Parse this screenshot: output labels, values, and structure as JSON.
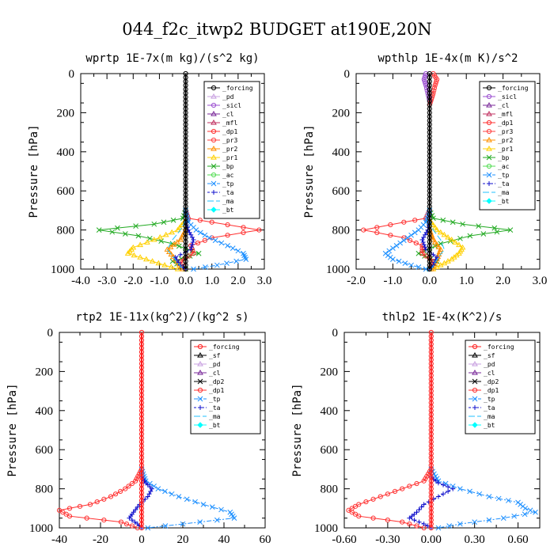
{
  "figure": {
    "title": "044_f2c_itwp2  BUDGET at190E,20N"
  },
  "colors": {
    "_forcing": "#000000",
    "_pd": "#c8a0e0",
    "_sicl": "#9b4fd0",
    "_cl": "#7a2a9a",
    "_mfl": "#c03060",
    "_dp1": "#ff3030",
    "_pr3": "#ff4040",
    "_pr2": "#ff9000",
    "_pr1": "#ffd000",
    "_bp": "#22aa22",
    "_ac": "#55dd55",
    "_tp": "#1e90ff",
    "_ta": "#1010cc",
    "_ma": "#20c0ff",
    "_bt": "#00ffff"
  },
  "chart_data": [
    {
      "type": "line",
      "title": "wprtp  1E-7x(m kg)/(s^2 kg)",
      "ylabel": "Pressure [hPa]",
      "xlim": [
        -4,
        3
      ],
      "ylim": [
        1000,
        0
      ],
      "xticks": [
        -4,
        -3,
        -2,
        -1,
        0,
        1,
        2,
        3
      ],
      "xticklabels": [
        "-4.0",
        "-3.0",
        "-2.0",
        "-1.0",
        "0.0",
        "1.0",
        "2.0",
        "3.0"
      ],
      "yticks": [
        0,
        200,
        400,
        600,
        800,
        1000
      ],
      "legend": {
        "position": "top-right",
        "entries": [
          "_forcing",
          "_pd",
          "_sicl",
          "_cl",
          "_mfl",
          "_dp1",
          "_pr3",
          "_pr2",
          "_pr1",
          "_bp",
          "_ac",
          "_tp",
          "_ta",
          "_ma",
          "_bt"
        ]
      },
      "series": [
        {
          "name": "_bp",
          "p": [
            700,
            740,
            770,
            800,
            830,
            870,
            920,
            960,
            1000
          ],
          "x": [
            0,
            -0.1,
            -1.2,
            -3.3,
            -1.8,
            -0.5,
            0.5,
            -0.5,
            0
          ]
        },
        {
          "name": "_dp1",
          "p": [
            700,
            740,
            760,
            800,
            840,
            880,
            920,
            960,
            1000
          ],
          "x": [
            0,
            0.1,
            1.0,
            2.8,
            1.0,
            0.2,
            0.3,
            -0.2,
            0
          ]
        },
        {
          "name": "_pr1",
          "p": [
            750,
            800,
            850,
            890,
            920,
            950,
            980,
            1000
          ],
          "x": [
            0,
            -0.3,
            -1.2,
            -2.0,
            -2.2,
            -1.5,
            -0.8,
            -0.3
          ]
        },
        {
          "name": "_pr2",
          "p": [
            800,
            850,
            900,
            950,
            1000
          ],
          "x": [
            0,
            -0.2,
            -0.7,
            -0.4,
            -0.1
          ]
        },
        {
          "name": "_tp",
          "p": [
            700,
            760,
            800,
            840,
            880,
            920,
            950,
            980,
            1000
          ],
          "x": [
            0,
            0.1,
            0.4,
            0.9,
            1.6,
            2.2,
            2.3,
            1.2,
            0.3
          ]
        },
        {
          "name": "_ta",
          "p": [
            760,
            800,
            850,
            900,
            940,
            980,
            1000
          ],
          "x": [
            0,
            0.1,
            0.3,
            0.2,
            -0.4,
            -0.2,
            0
          ]
        },
        {
          "name": "_ma",
          "p": [
            750,
            800,
            850,
            900,
            950,
            1000
          ],
          "x": [
            0,
            -0.2,
            -0.5,
            -0.7,
            -0.4,
            -0.1
          ]
        },
        {
          "name": "_forcing",
          "p": [
            0,
            100,
            200,
            300,
            400,
            500,
            600,
            700,
            800,
            900,
            1000
          ],
          "x": [
            0,
            0,
            0,
            0,
            0,
            0,
            0,
            0,
            0,
            0,
            0
          ]
        }
      ]
    },
    {
      "type": "line",
      "title": "wpthlp  1E-4x(m K)/s^2",
      "ylabel": "Pressure [hPa]",
      "xlim": [
        -2,
        3
      ],
      "ylim": [
        1000,
        0
      ],
      "xticks": [
        -2,
        -1,
        0,
        1,
        2,
        3
      ],
      "xticklabels": [
        "-2.0",
        "-1.0",
        "0.0",
        "1.0",
        "2.0",
        "3.0"
      ],
      "yticks": [
        0,
        200,
        400,
        600,
        800,
        1000
      ],
      "legend": {
        "position": "top-right",
        "entries": [
          "_forcing",
          "_sicl",
          "_cl",
          "_mfl",
          "_dp1",
          "_pr3",
          "_pr2",
          "_pr1",
          "_bp",
          "_ac",
          "_tp",
          "_ta",
          "_ma",
          "_bt"
        ]
      },
      "series": [
        {
          "name": "_bp",
          "p": [
            700,
            740,
            770,
            800,
            830,
            870,
            920,
            960,
            1000
          ],
          "x": [
            0,
            0.1,
            0.9,
            2.2,
            1.1,
            0.3,
            -0.3,
            0.2,
            0
          ]
        },
        {
          "name": "_dp1",
          "p": [
            700,
            740,
            760,
            800,
            840,
            880,
            920,
            960,
            1000
          ],
          "x": [
            0,
            -0.1,
            -0.7,
            -1.8,
            -0.7,
            -0.2,
            -0.2,
            0.1,
            0
          ]
        },
        {
          "name": "_pr1",
          "p": [
            750,
            800,
            850,
            890,
            920,
            950,
            980,
            1000
          ],
          "x": [
            0,
            0.2,
            0.6,
            0.9,
            0.8,
            0.6,
            0.3,
            0.1
          ]
        },
        {
          "name": "_pr2",
          "p": [
            800,
            850,
            900,
            950,
            1000
          ],
          "x": [
            0,
            0.1,
            0.3,
            0.2,
            0.05
          ]
        },
        {
          "name": "_tp",
          "p": [
            700,
            760,
            800,
            840,
            880,
            920,
            950,
            980,
            1000
          ],
          "x": [
            0,
            -0.1,
            -0.3,
            -0.6,
            -0.9,
            -1.2,
            -1.0,
            -0.5,
            -0.1
          ]
        },
        {
          "name": "_ta",
          "p": [
            760,
            800,
            850,
            900,
            940,
            980,
            1000
          ],
          "x": [
            0,
            -0.05,
            -0.2,
            -0.1,
            0.2,
            0.1,
            0
          ]
        },
        {
          "name": "_ma",
          "p": [
            750,
            800,
            850,
            900,
            950,
            1000
          ],
          "x": [
            0,
            0.1,
            0.3,
            0.4,
            0.2,
            0.05
          ]
        },
        {
          "name": "_pr3",
          "p": [
            0,
            30,
            60,
            100,
            130,
            160
          ],
          "x": [
            0.1,
            0.2,
            0.15,
            0.1,
            0.05,
            0
          ]
        },
        {
          "name": "_sicl",
          "p": [
            0,
            30,
            60,
            100,
            140
          ],
          "x": [
            -0.1,
            -0.15,
            -0.1,
            -0.05,
            0
          ]
        },
        {
          "name": "_forcing",
          "p": [
            0,
            100,
            200,
            300,
            400,
            500,
            600,
            700,
            800,
            900,
            1000
          ],
          "x": [
            0,
            0,
            0,
            0,
            0,
            0,
            0,
            0,
            0,
            0,
            0
          ]
        }
      ]
    },
    {
      "type": "line",
      "title": "rtp2  1E-11x(kg^2)/(kg^2 s)",
      "ylabel": "Pressure [hPa]",
      "xlim": [
        -40,
        60
      ],
      "ylim": [
        1000,
        0
      ],
      "xticks": [
        -40,
        -20,
        0,
        20,
        40,
        60
      ],
      "xticklabels": [
        "-40",
        "-20",
        "0",
        "20",
        "40",
        "60"
      ],
      "yticks": [
        0,
        200,
        400,
        600,
        800,
        1000
      ],
      "legend": {
        "position": "top-right",
        "entries": [
          "_forcing",
          "_sf",
          "_pd",
          "_cl",
          "_dp2",
          "_dp1",
          "_tp",
          "_ta",
          "_ma",
          "_bt"
        ]
      },
      "series": [
        {
          "name": "_dp1",
          "p": [
            700,
            760,
            800,
            840,
            880,
            910,
            940,
            970,
            1000
          ],
          "x": [
            0,
            -3,
            -8,
            -15,
            -25,
            -40,
            -35,
            -10,
            -2
          ]
        },
        {
          "name": "_tp",
          "p": [
            700,
            760,
            800,
            840,
            880,
            920,
            950,
            980,
            1000
          ],
          "x": [
            0,
            2,
            8,
            18,
            30,
            43,
            45,
            20,
            3
          ]
        },
        {
          "name": "_ta",
          "p": [
            740,
            770,
            800,
            840,
            880,
            920,
            950,
            980,
            1000
          ],
          "x": [
            0,
            2,
            5,
            3,
            -1,
            -4,
            -6,
            -2,
            0
          ]
        },
        {
          "name": "_forcing",
          "p": [
            0,
            100,
            200,
            300,
            400,
            500,
            600,
            700,
            800,
            900,
            1000
          ],
          "x": [
            0,
            0,
            0,
            0,
            0,
            0,
            0,
            0,
            0,
            0,
            0
          ]
        }
      ]
    },
    {
      "type": "line",
      "title": "thlp2  1E-4x(K^2)/s",
      "ylabel": "Pressure [hPa]",
      "xlim": [
        -0.6,
        0.75
      ],
      "ylim": [
        1000,
        0
      ],
      "xticks": [
        -0.6,
        -0.3,
        0,
        0.3,
        0.6
      ],
      "xticklabels": [
        "-0.60",
        "-0.30",
        "0.00",
        "0.30",
        "0.60"
      ],
      "yticks": [
        0,
        200,
        400,
        600,
        800,
        1000
      ],
      "legend": {
        "position": "top-right",
        "entries": [
          "_forcing",
          "_sf",
          "_pd",
          "_cl",
          "_dp2",
          "_dp1",
          "_tp",
          "_ta",
          "_ma",
          "_bt"
        ]
      },
      "series": [
        {
          "name": "_dp1",
          "p": [
            700,
            760,
            800,
            840,
            880,
            910,
            940,
            970,
            1000
          ],
          "x": [
            0,
            -0.05,
            -0.2,
            -0.35,
            -0.5,
            -0.57,
            -0.5,
            -0.2,
            -0.05
          ]
        },
        {
          "name": "_tp",
          "p": [
            700,
            760,
            800,
            840,
            870,
            900,
            920,
            950,
            980,
            1000
          ],
          "x": [
            0,
            0.05,
            0.2,
            0.4,
            0.6,
            0.65,
            0.72,
            0.5,
            0.2,
            0.05
          ]
        },
        {
          "name": "_ta",
          "p": [
            740,
            770,
            800,
            840,
            880,
            920,
            950,
            980,
            1000
          ],
          "x": [
            0,
            0.05,
            0.15,
            0.05,
            -0.05,
            -0.1,
            -0.15,
            -0.05,
            0
          ]
        },
        {
          "name": "_forcing",
          "p": [
            0,
            100,
            200,
            300,
            400,
            500,
            600,
            700,
            800,
            900,
            1000
          ],
          "x": [
            0,
            0,
            0,
            0,
            0,
            0,
            0,
            0,
            0,
            0,
            0
          ]
        }
      ]
    }
  ]
}
